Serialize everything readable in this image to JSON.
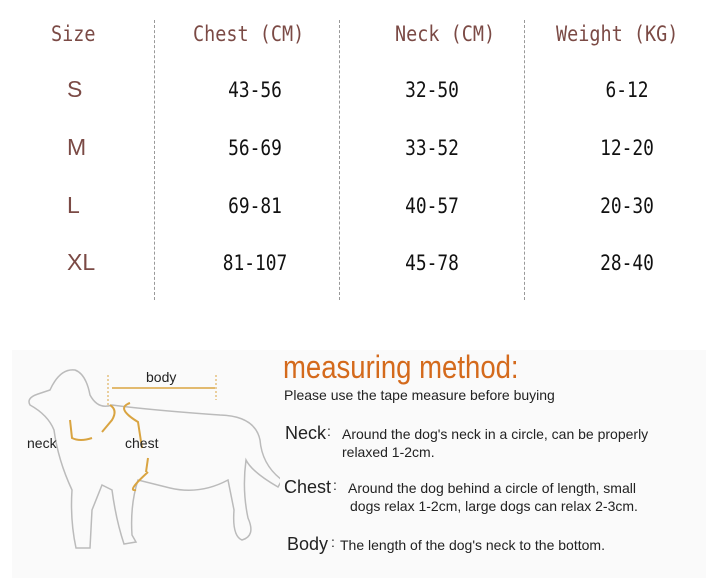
{
  "table": {
    "headers": [
      "Size",
      "Chest (CM)",
      "Neck (CM)",
      "Weight (KG)"
    ],
    "rows": [
      {
        "size": "S",
        "chest": "43-56",
        "neck": "32-50",
        "weight": "6-12"
      },
      {
        "size": "M",
        "chest": "56-69",
        "neck": "33-52",
        "weight": "12-20"
      },
      {
        "size": "L",
        "chest": "69-81",
        "neck": "40-57",
        "weight": "20-30"
      },
      {
        "size": "XL",
        "chest": "81-107",
        "neck": "45-78",
        "weight": "28-40"
      }
    ]
  },
  "diagram": {
    "body": "body",
    "neck": "neck",
    "chest": "chest"
  },
  "method": {
    "title": "measuring method:",
    "intro": "Please use the tape measure before buying",
    "neck_label": "Neck",
    "neck_text1": "Around the dog's neck in a circle, can be properly",
    "neck_text2": "relaxed 1-2cm.",
    "chest_label": "Chest",
    "chest_text1": "Around the dog behind a circle of length, small",
    "chest_text2": "dogs relax 1-2cm, large dogs can relax 2-3cm.",
    "body_label": "Body",
    "body_text": "The length of the dog's neck to the bottom."
  },
  "colors": {
    "header": "#7b4a45",
    "accent": "#d46a1c",
    "arrow": "#d9a441"
  }
}
